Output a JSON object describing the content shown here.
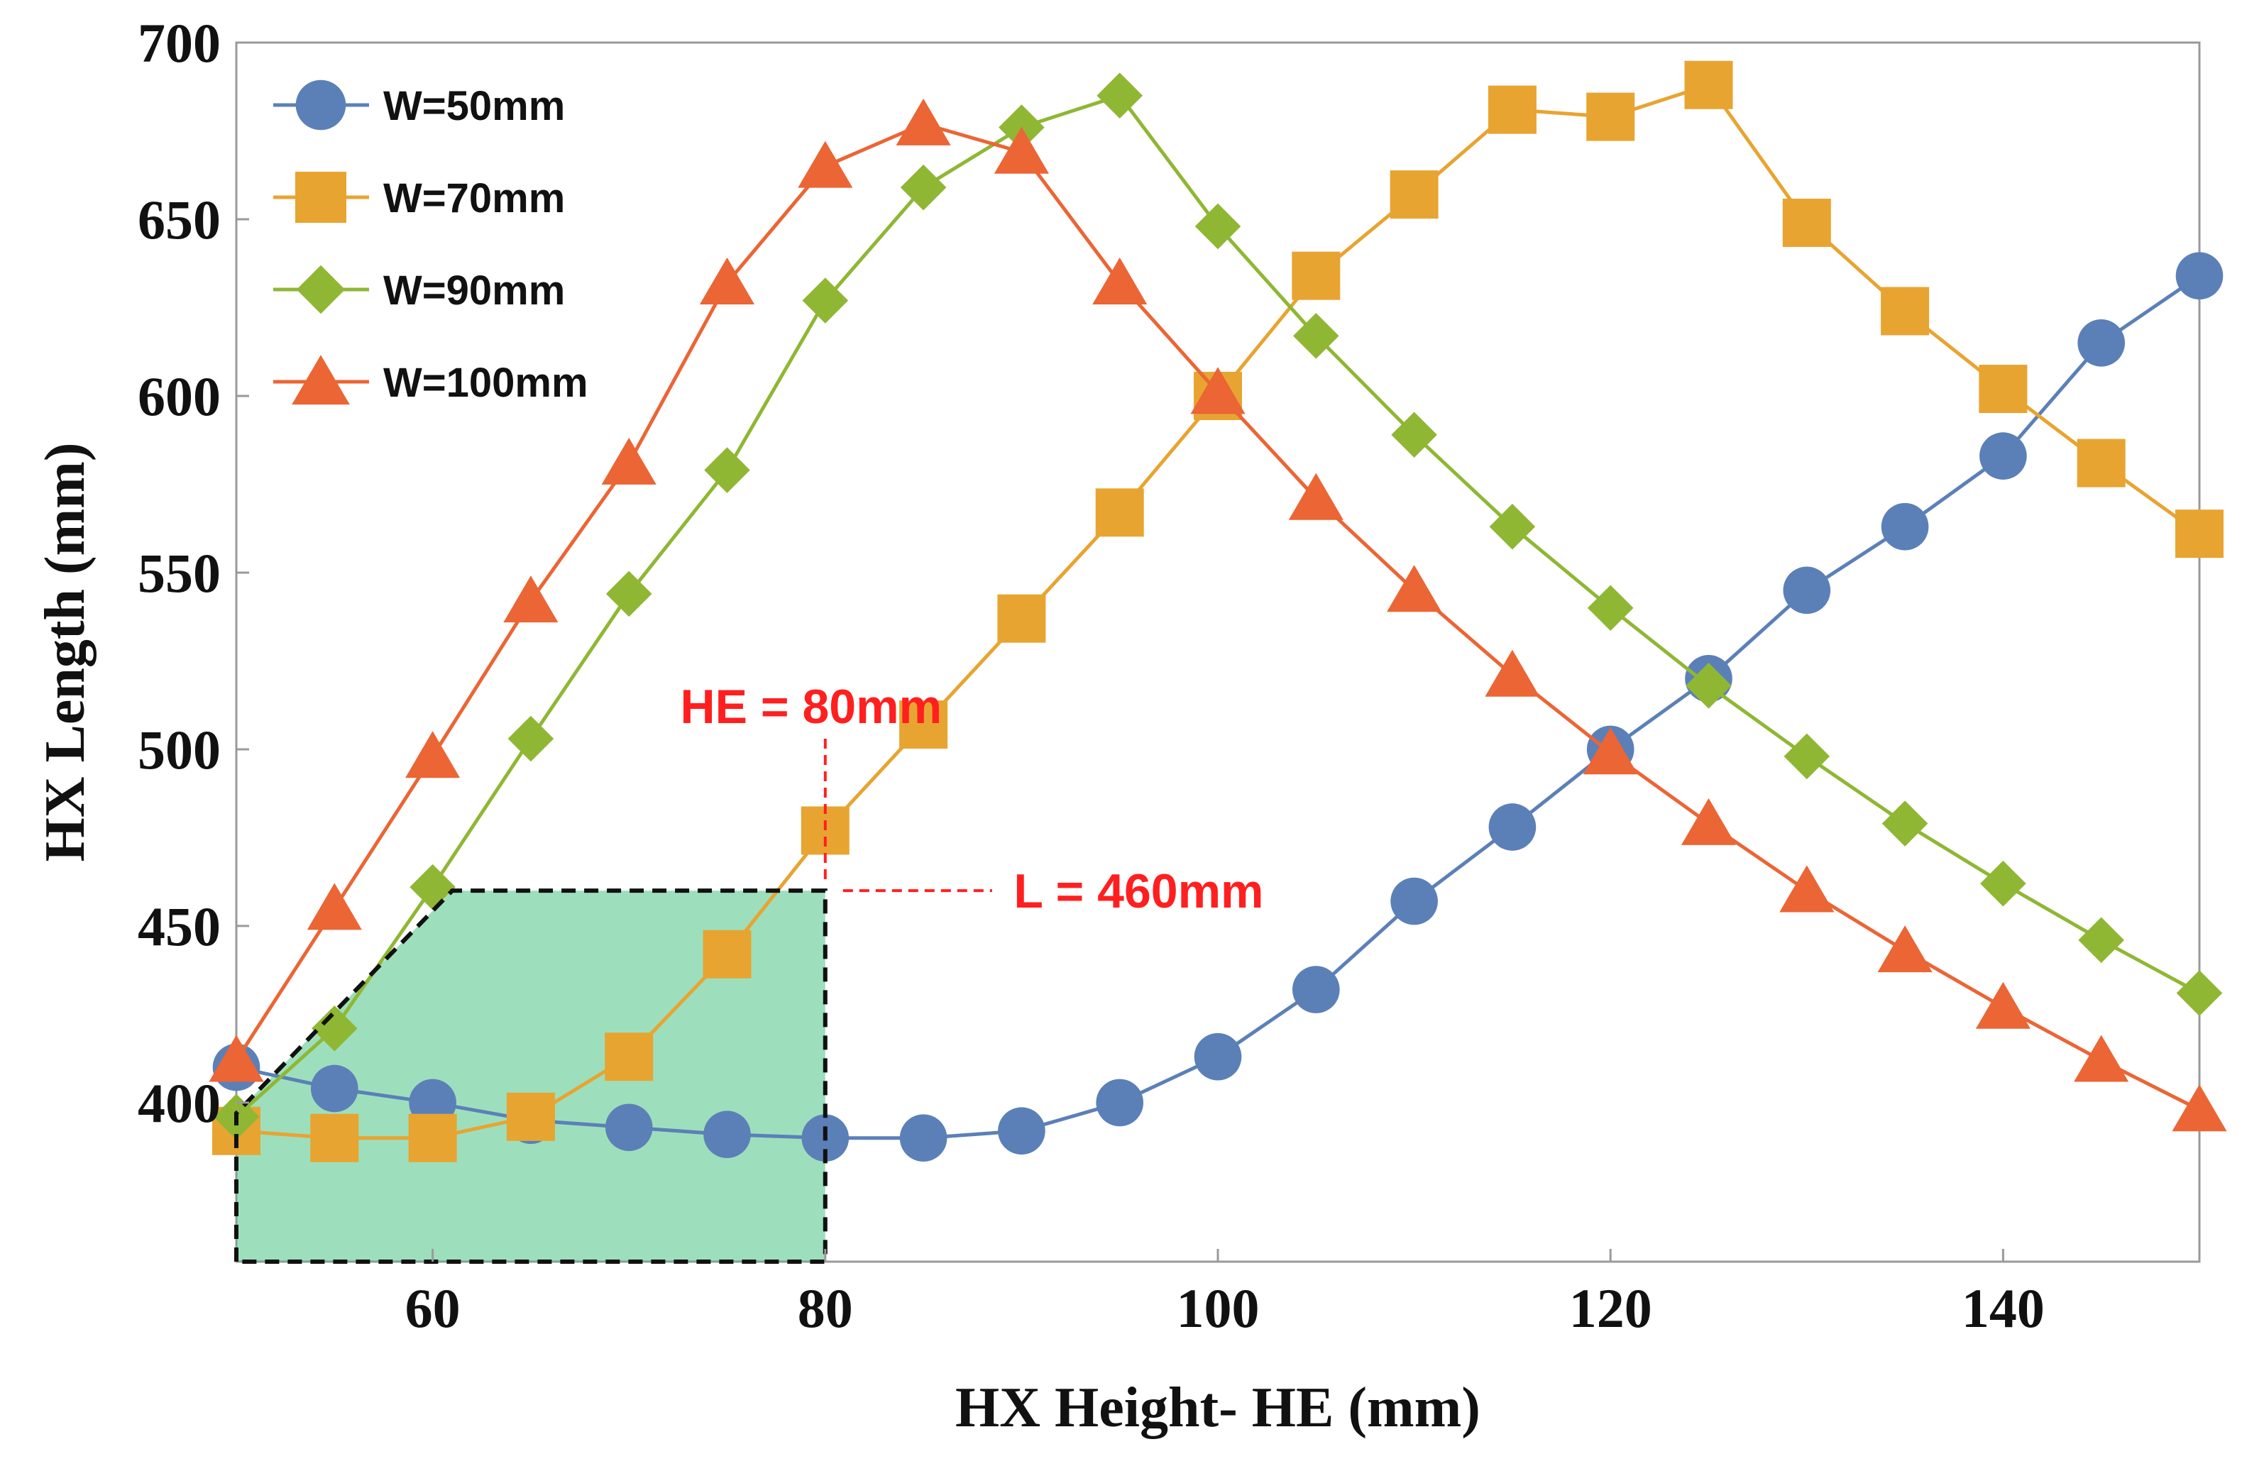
{
  "chart_data": {
    "type": "line",
    "title": "",
    "xlabel": "HX Height- HE (mm)",
    "ylabel": "HX Length (mm)",
    "xlim": [
      50,
      150
    ],
    "ylim": [
      355,
      700
    ],
    "xticks": [
      60,
      80,
      100,
      120,
      140
    ],
    "yticks": [
      400,
      450,
      500,
      550,
      600,
      650,
      700
    ],
    "x": [
      50,
      55,
      60,
      65,
      70,
      75,
      80,
      85,
      90,
      95,
      100,
      105,
      110,
      115,
      120,
      125,
      130,
      135,
      140,
      145,
      150
    ],
    "legend_position": "top-left",
    "series": [
      {
        "name": "W=50mm",
        "marker": "circle",
        "color": "#5b80b8",
        "values": [
          410,
          404,
          400,
          395,
          393,
          391,
          390,
          390,
          392,
          400,
          413,
          432,
          457,
          478,
          500,
          520,
          545,
          563,
          583,
          615,
          634
        ]
      },
      {
        "name": "W=70mm",
        "marker": "square",
        "color": "#e8a431",
        "values": [
          392,
          390,
          390,
          396,
          413,
          442,
          477,
          507,
          537,
          567,
          600,
          634,
          657,
          681,
          679,
          688,
          649,
          624,
          602,
          581,
          561
        ]
      },
      {
        "name": "W=90mm",
        "marker": "diamond",
        "color": "#8fb734",
        "values": [
          396,
          421,
          461,
          503,
          544,
          579,
          627,
          659,
          676,
          685,
          648,
          617,
          589,
          563,
          540,
          518,
          498,
          479,
          462,
          446,
          431
        ]
      },
      {
        "name": "W=100mm",
        "marker": "triangle",
        "color": "#eb6535",
        "values": [
          412,
          455,
          498,
          542,
          581,
          632,
          665,
          677,
          669,
          632,
          601,
          571,
          545,
          521,
          499,
          479,
          460,
          443,
          427,
          412,
          398
        ]
      }
    ],
    "annotations": {
      "he_label": "HE = 80mm",
      "l_label": "L = 460mm",
      "he_value": 80,
      "l_value": 460,
      "region": {
        "description_points": [
          [
            50,
            355
          ],
          [
            50,
            397
          ],
          [
            61,
            460
          ],
          [
            80,
            460
          ],
          [
            80,
            355
          ]
        ],
        "fill": "#3cbf7a"
      }
    }
  }
}
